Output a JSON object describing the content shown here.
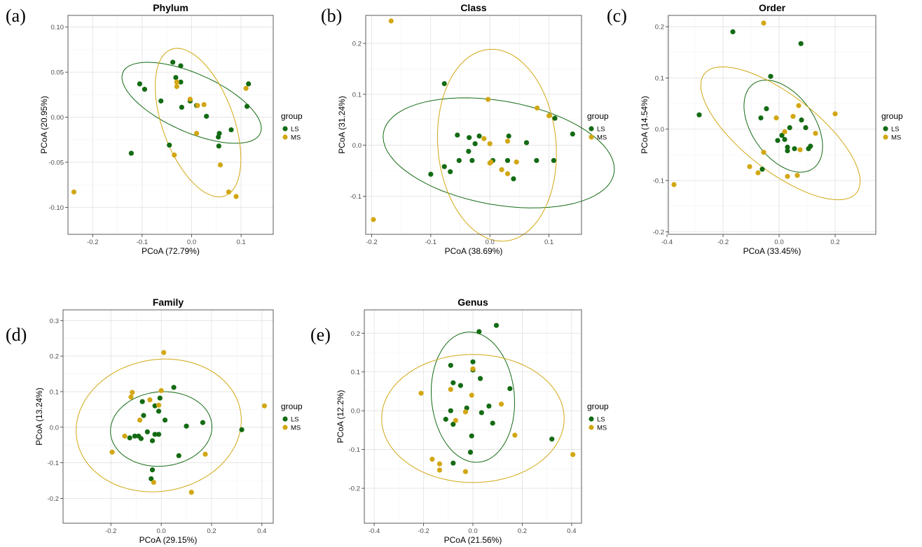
{
  "colors": {
    "LS": "#136b13",
    "MS": "#d2a713"
  },
  "legend_title": "group",
  "chart_data": [
    {
      "type": "scatter",
      "letter": "(a)",
      "title": "Phylum",
      "xlabel": "PCoA (72.79%)",
      "ylabel": "PCoA (20.95%)",
      "xlim": [
        -0.25,
        0.165
      ],
      "ylim": [
        -0.13,
        0.113
      ],
      "xticks": [
        "-0.2",
        "-0.1",
        "0.0",
        "0.1"
      ],
      "xtick_values": [
        -0.2,
        -0.1,
        0.0,
        0.1
      ],
      "yticks": [
        "-0.10",
        "-0.05",
        "0.00",
        "0.05",
        "0.10"
      ],
      "ytick_values": [
        -0.1,
        -0.05,
        0.0,
        0.05,
        0.1
      ],
      "legend": [
        "LS",
        "MS"
      ],
      "series": [
        {
          "name": "LS",
          "points": [
            [
              -0.105,
              0.037
            ],
            [
              -0.095,
              0.031
            ],
            [
              -0.062,
              0.018
            ],
            [
              -0.038,
              0.061
            ],
            [
              -0.032,
              0.044
            ],
            [
              -0.022,
              0.057
            ],
            [
              -0.022,
              0.039
            ],
            [
              -0.02,
              0.011
            ],
            [
              -0.003,
              0.018
            ],
            [
              0.01,
              0.013
            ],
            [
              0.03,
              0.001
            ],
            [
              0.054,
              -0.022
            ],
            [
              0.056,
              -0.018
            ],
            [
              0.055,
              -0.032
            ],
            [
              0.08,
              -0.014
            ],
            [
              0.115,
              0.037
            ],
            [
              0.112,
              0.012
            ],
            [
              -0.122,
              -0.04
            ],
            [
              -0.045,
              -0.031
            ]
          ]
        },
        {
          "name": "MS",
          "points": [
            [
              -0.238,
              -0.083
            ],
            [
              -0.03,
              0.039
            ],
            [
              -0.03,
              0.034
            ],
            [
              -0.003,
              0.02
            ],
            [
              0.012,
              0.013
            ],
            [
              0.025,
              0.014
            ],
            [
              0.01,
              -0.018
            ],
            [
              0.11,
              0.032
            ],
            [
              -0.035,
              -0.042
            ],
            [
              0.058,
              -0.053
            ],
            [
              0.075,
              -0.083
            ],
            [
              0.09,
              -0.088
            ]
          ]
        }
      ],
      "ellipses": [
        {
          "name": "LS",
          "cx": 0.0,
          "cy": 0.016,
          "rx": 0.152,
          "ry": 0.059,
          "angle": -24
        },
        {
          "name": "MS",
          "cx": 0.013,
          "cy": -0.006,
          "rx": 0.158,
          "ry": 0.072,
          "angle": -70
        }
      ]
    },
    {
      "type": "scatter",
      "letter": "(b)",
      "title": "Class",
      "xlabel": "PCoA (38.69%)",
      "ylabel": "PCoA (31.24%)",
      "xlim": [
        -0.21,
        0.155
      ],
      "ylim": [
        -0.175,
        0.255
      ],
      "xticks": [
        "-0.2",
        "-0.1",
        "0.0",
        "0.1"
      ],
      "xtick_values": [
        -0.2,
        -0.1,
        0.0,
        0.1
      ],
      "yticks": [
        "-0.1",
        "0.0",
        "0.1",
        "0.2"
      ],
      "ytick_values": [
        -0.1,
        0.0,
        0.1,
        0.2
      ],
      "legend": [
        "LS",
        "MS"
      ],
      "series": [
        {
          "name": "LS",
          "points": [
            [
              -0.077,
              0.121
            ],
            [
              -0.1,
              -0.057
            ],
            [
              -0.077,
              -0.042
            ],
            [
              -0.067,
              -0.052
            ],
            [
              -0.055,
              0.02
            ],
            [
              -0.052,
              -0.03
            ],
            [
              -0.035,
              0.015
            ],
            [
              -0.03,
              -0.03
            ],
            [
              -0.036,
              -0.012
            ],
            [
              -0.025,
              0.003
            ],
            [
              -0.018,
              0.018
            ],
            [
              0.005,
              -0.03
            ],
            [
              0.03,
              -0.03
            ],
            [
              0.032,
              0.018
            ],
            [
              0.04,
              -0.066
            ],
            [
              0.062,
              0.005
            ],
            [
              0.079,
              -0.03
            ],
            [
              0.11,
              0.053
            ],
            [
              0.108,
              -0.03
            ],
            [
              0.14,
              0.022
            ]
          ]
        },
        {
          "name": "MS",
          "points": [
            [
              -0.167,
              0.244
            ],
            [
              -0.197,
              -0.146
            ],
            [
              -0.003,
              0.09
            ],
            [
              0.08,
              0.073
            ],
            [
              0.1,
              0.058
            ],
            [
              -0.01,
              0.013
            ],
            [
              0.0,
              0.003
            ],
            [
              0.03,
              0.008
            ],
            [
              0.002,
              -0.033
            ],
            [
              0.0,
              -0.035
            ],
            [
              0.02,
              -0.048
            ],
            [
              0.03,
              -0.056
            ],
            [
              0.045,
              -0.033
            ]
          ]
        }
      ],
      "ellipses": [
        {
          "name": "LS",
          "cx": 0.015,
          "cy": -0.015,
          "rx": 0.198,
          "ry": 0.088,
          "angle": -10
        },
        {
          "name": "MS",
          "cx": 0.012,
          "cy": 0.0,
          "rx": 0.163,
          "ry": 0.1,
          "angle": -85
        }
      ]
    },
    {
      "type": "scatter",
      "letter": "(c)",
      "title": "Order",
      "xlabel": "PCoA (33.45%)",
      "ylabel": "PCoA (14.54%)",
      "xlim": [
        -0.395,
        0.345
      ],
      "ylim": [
        -0.205,
        0.222
      ],
      "xticks": [
        "-0.4",
        "-0.2",
        "0.0",
        "0.2"
      ],
      "xtick_values": [
        -0.4,
        -0.2,
        0.0,
        0.2
      ],
      "yticks": [
        "-0.2",
        "-0.1",
        "0.0",
        "0.1",
        "0.2"
      ],
      "ytick_values": [
        -0.2,
        -0.1,
        0.0,
        0.1,
        0.2
      ],
      "legend": [
        "LS",
        "MS"
      ],
      "series": [
        {
          "name": "LS",
          "points": [
            [
              -0.165,
              0.19
            ],
            [
              0.078,
              0.167
            ],
            [
              -0.03,
              0.103
            ],
            [
              -0.285,
              0.028
            ],
            [
              -0.065,
              0.022
            ],
            [
              -0.045,
              0.04
            ],
            [
              -0.005,
              -0.022
            ],
            [
              0.01,
              -0.012
            ],
            [
              0.02,
              -0.02
            ],
            [
              0.038,
              0.003
            ],
            [
              0.08,
              0.018
            ],
            [
              0.095,
              0.003
            ],
            [
              0.03,
              -0.042
            ],
            [
              0.03,
              -0.035
            ],
            [
              0.055,
              -0.038
            ],
            [
              0.105,
              -0.038
            ],
            [
              0.112,
              -0.033
            ],
            [
              -0.06,
              -0.078
            ]
          ]
        },
        {
          "name": "MS",
          "points": [
            [
              -0.055,
              0.207
            ],
            [
              0.07,
              0.046
            ],
            [
              -0.01,
              0.022
            ],
            [
              0.05,
              0.025
            ],
            [
              0.02,
              -0.005
            ],
            [
              0.13,
              -0.008
            ],
            [
              0.2,
              0.03
            ],
            [
              -0.055,
              -0.045
            ],
            [
              0.075,
              -0.04
            ],
            [
              -0.105,
              -0.073
            ],
            [
              -0.075,
              -0.085
            ],
            [
              0.03,
              -0.092
            ],
            [
              0.065,
              -0.09
            ],
            [
              -0.375,
              -0.108
            ]
          ]
        }
      ],
      "ellipses": [
        {
          "name": "LS",
          "cx": 0.015,
          "cy": 0.006,
          "rx": 0.185,
          "ry": 0.112,
          "angle": -55
        },
        {
          "name": "MS",
          "cx": 0.005,
          "cy": -0.008,
          "rx": 0.345,
          "ry": 0.135,
          "angle": -38
        }
      ]
    },
    {
      "type": "scatter",
      "letter": "(d)",
      "title": "Family",
      "xlabel": "PCoA (29.15%)",
      "ylabel": "PCoA (13.24%)",
      "xlim": [
        -0.39,
        0.445
      ],
      "ylim": [
        -0.27,
        0.33
      ],
      "xticks": [
        "-0.2",
        "0.0",
        "0.2",
        "0.4"
      ],
      "xtick_values": [
        -0.2,
        0.0,
        0.2,
        0.4
      ],
      "yticks": [
        "-0.2",
        "-0.1",
        "0.0",
        "0.1",
        "0.2",
        "0.3"
      ],
      "ytick_values": [
        -0.2,
        -0.1,
        0.0,
        0.1,
        0.2,
        0.3
      ],
      "legend": [
        "LS",
        "MS"
      ],
      "series": [
        {
          "name": "LS",
          "points": [
            [
              0.05,
              0.112
            ],
            [
              -0.005,
              0.082
            ],
            [
              -0.075,
              0.072
            ],
            [
              -0.025,
              0.06
            ],
            [
              -0.07,
              0.033
            ],
            [
              -0.01,
              0.045
            ],
            [
              0.015,
              0.02
            ],
            [
              0.1,
              0.003
            ],
            [
              0.165,
              0.013
            ],
            [
              -0.125,
              -0.03
            ],
            [
              -0.105,
              -0.025
            ],
            [
              -0.09,
              -0.025
            ],
            [
              -0.08,
              -0.032
            ],
            [
              -0.055,
              -0.013
            ],
            [
              -0.035,
              -0.038
            ],
            [
              -0.025,
              -0.02
            ],
            [
              -0.01,
              -0.02
            ],
            [
              0.07,
              -0.08
            ],
            [
              0.32,
              -0.007
            ],
            [
              -0.035,
              -0.12
            ],
            [
              -0.04,
              -0.145
            ]
          ]
        },
        {
          "name": "MS",
          "points": [
            [
              0.01,
              0.21
            ],
            [
              -0.115,
              0.098
            ],
            [
              -0.12,
              0.085
            ],
            [
              0.0,
              0.103
            ],
            [
              -0.045,
              0.077
            ],
            [
              -0.01,
              0.062
            ],
            [
              -0.085,
              0.02
            ],
            [
              -0.145,
              -0.025
            ],
            [
              -0.195,
              -0.07
            ],
            [
              0.175,
              -0.076
            ],
            [
              0.41,
              0.06
            ],
            [
              -0.03,
              -0.155
            ],
            [
              0.12,
              -0.183
            ]
          ]
        }
      ],
      "ellipses": [
        {
          "name": "LS",
          "cx": 0.0,
          "cy": -0.005,
          "rx": 0.202,
          "ry": 0.148,
          "angle": 5
        },
        {
          "name": "MS",
          "cx": -0.01,
          "cy": 0.005,
          "rx": 0.33,
          "ry": 0.262,
          "angle": 10
        }
      ]
    },
    {
      "type": "scatter",
      "letter": "(e)",
      "title": "Genus",
      "xlabel": "PCoA (21.56%)",
      "ylabel": "PCoA (12.2%)",
      "xlim": [
        -0.44,
        0.44
      ],
      "ylim": [
        -0.29,
        0.26
      ],
      "xticks": [
        "-0.4",
        "-0.2",
        "0.0",
        "0.2",
        "0.4"
      ],
      "xtick_values": [
        -0.4,
        -0.2,
        0.0,
        0.2,
        0.4
      ],
      "yticks": [
        "-0.2",
        "-0.1",
        "0.0",
        "0.1",
        "0.2"
      ],
      "ytick_values": [
        -0.2,
        -0.1,
        0.0,
        0.1,
        0.2
      ],
      "legend": [
        "LS",
        "MS"
      ],
      "series": [
        {
          "name": "LS",
          "points": [
            [
              0.095,
              0.22
            ],
            [
              0.025,
              0.204
            ],
            [
              0.0,
              0.126
            ],
            [
              -0.09,
              0.117
            ],
            [
              0.0,
              0.105
            ],
            [
              0.03,
              0.083
            ],
            [
              -0.08,
              0.072
            ],
            [
              -0.05,
              0.065
            ],
            [
              0.15,
              0.057
            ],
            [
              0.065,
              0.012
            ],
            [
              -0.025,
              0.007
            ],
            [
              -0.09,
              0.0
            ],
            [
              0.035,
              -0.005
            ],
            [
              -0.11,
              -0.022
            ],
            [
              -0.08,
              -0.035
            ],
            [
              0.08,
              -0.032
            ],
            [
              -0.005,
              -0.065
            ],
            [
              -0.01,
              -0.107
            ],
            [
              -0.08,
              -0.135
            ],
            [
              0.32,
              -0.073
            ]
          ]
        },
        {
          "name": "MS",
          "points": [
            [
              0.0,
              0.108
            ],
            [
              -0.09,
              0.055
            ],
            [
              -0.005,
              0.04
            ],
            [
              0.115,
              0.017
            ],
            [
              -0.03,
              -0.003
            ],
            [
              -0.21,
              0.045
            ],
            [
              -0.07,
              -0.025
            ],
            [
              0.17,
              -0.063
            ],
            [
              -0.165,
              -0.125
            ],
            [
              -0.135,
              -0.137
            ],
            [
              -0.135,
              -0.153
            ],
            [
              -0.03,
              -0.157
            ],
            [
              0.405,
              -0.113
            ]
          ]
        }
      ],
      "ellipses": [
        {
          "name": "LS",
          "cx": 0.0,
          "cy": 0.035,
          "rx": 0.265,
          "ry": 0.168,
          "angle": -85
        },
        {
          "name": "MS",
          "cx": 0.0,
          "cy": -0.02,
          "rx": 0.37,
          "ry": 0.26,
          "angle": 0
        }
      ]
    }
  ]
}
